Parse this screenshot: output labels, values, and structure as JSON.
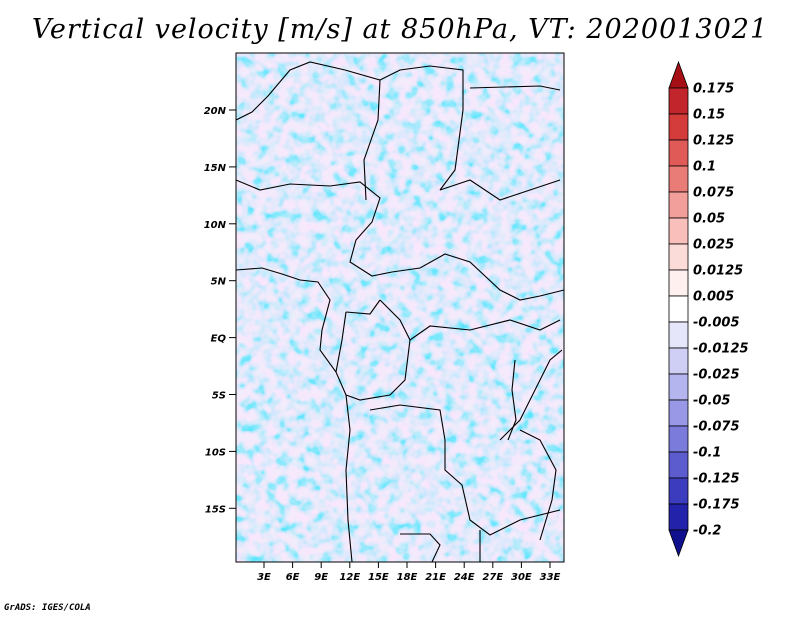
{
  "title": "Vertical velocity [m/s] at 850hPa, VT: 2020013021",
  "credit": "GrADS: IGES/COLA",
  "map": {
    "lon_range": [
      0,
      35
    ],
    "lat_range": [
      -20,
      24
    ],
    "lat_ticks": [
      "20N",
      "15N",
      "10N",
      "5N",
      "EQ",
      "5S",
      "10S",
      "15S"
    ],
    "lon_ticks": [
      "3E",
      "6E",
      "9E",
      "12E",
      "15E",
      "18E",
      "21E",
      "24E",
      "27E",
      "30E",
      "33E"
    ]
  },
  "colorbar": {
    "levels": [
      "0.175",
      "0.15",
      "0.125",
      "0.1",
      "0.075",
      "0.05",
      "0.025",
      "0.0125",
      "0.005",
      "-0.005",
      "-0.0125",
      "-0.025",
      "-0.05",
      "-0.075",
      "-0.1",
      "-0.125",
      "-0.175",
      "-0.2"
    ],
    "colors": [
      "#a50f15",
      "#c2262c",
      "#d43c3c",
      "#e05a58",
      "#ea7c78",
      "#f29e9a",
      "#f8bfbb",
      "#fcdcd9",
      "#fdf0ee",
      "#ffffff",
      "#e6e6fa",
      "#cfcff5",
      "#b4b4ef",
      "#9898e7",
      "#7b7bdc",
      "#5c5ccf",
      "#3c3cbf",
      "#2222aa",
      "#10108f"
    ]
  }
}
